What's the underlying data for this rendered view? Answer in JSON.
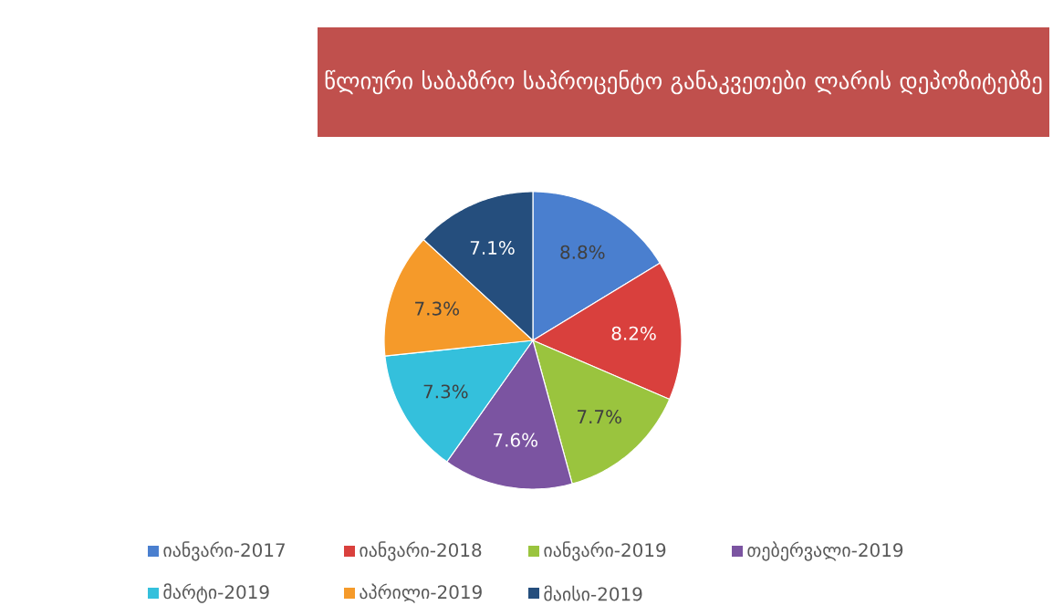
{
  "chart_data": {
    "type": "pie",
    "title": "წლიური საბაზრო საპროცენტო განაკვეთები ლარის დეპოზიტებზე",
    "categories": [
      "იანვარი-2017",
      "იანვარი-2018",
      "იანვარი-2019",
      "თებერვალი-2019",
      "მარტი-2019",
      "აპრილი-2019",
      "მაისი-2019"
    ],
    "values": [
      8.8,
      8.2,
      7.7,
      7.6,
      7.3,
      7.3,
      7.1
    ],
    "colors": [
      "#4a7fcf",
      "#d9403d",
      "#9ac43e",
      "#7b54a1",
      "#34c0dc",
      "#f59a2a",
      "#254e7d"
    ],
    "value_labels": [
      "8.8%",
      "8.2%",
      "7.7%",
      "7.6%",
      "7.3%",
      "7.3%",
      "7.1%"
    ],
    "legend": "bottom"
  }
}
